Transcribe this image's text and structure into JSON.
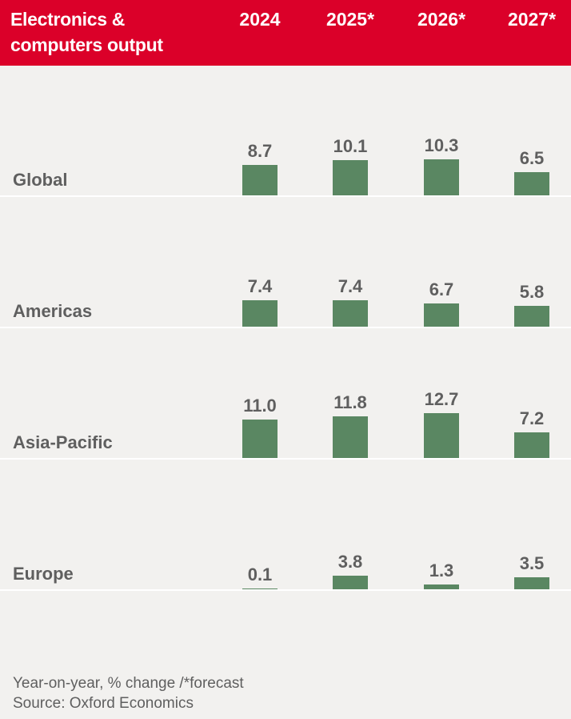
{
  "chart_data": {
    "type": "bar",
    "title": "Electronics & computers output",
    "categories": [
      "2024",
      "2025*",
      "2026*",
      "2027*"
    ],
    "series": [
      {
        "name": "Global",
        "values": [
          8.7,
          10.1,
          10.3,
          6.5
        ]
      },
      {
        "name": "Americas",
        "values": [
          7.4,
          7.4,
          6.7,
          5.8
        ]
      },
      {
        "name": "Asia-Pacific",
        "values": [
          11.0,
          11.8,
          12.7,
          7.2
        ]
      },
      {
        "name": "Europe",
        "values": [
          0.1,
          3.8,
          1.3,
          3.5
        ]
      }
    ],
    "value_labels": [
      [
        "8.7",
        "10.1",
        "10.3",
        "6.5"
      ],
      [
        "7.4",
        "7.4",
        "6.7",
        "5.8"
      ],
      [
        "11.0",
        "11.8",
        "12.7",
        "7.2"
      ],
      [
        "0.1",
        "3.8",
        "1.3",
        "3.5"
      ]
    ],
    "note": "Year-on-year, % change /*forecast",
    "source": "Source: Oxford Economics",
    "colors": {
      "header": "#db0029",
      "bar": "#5a8762",
      "background": "#f2f1ef"
    }
  }
}
